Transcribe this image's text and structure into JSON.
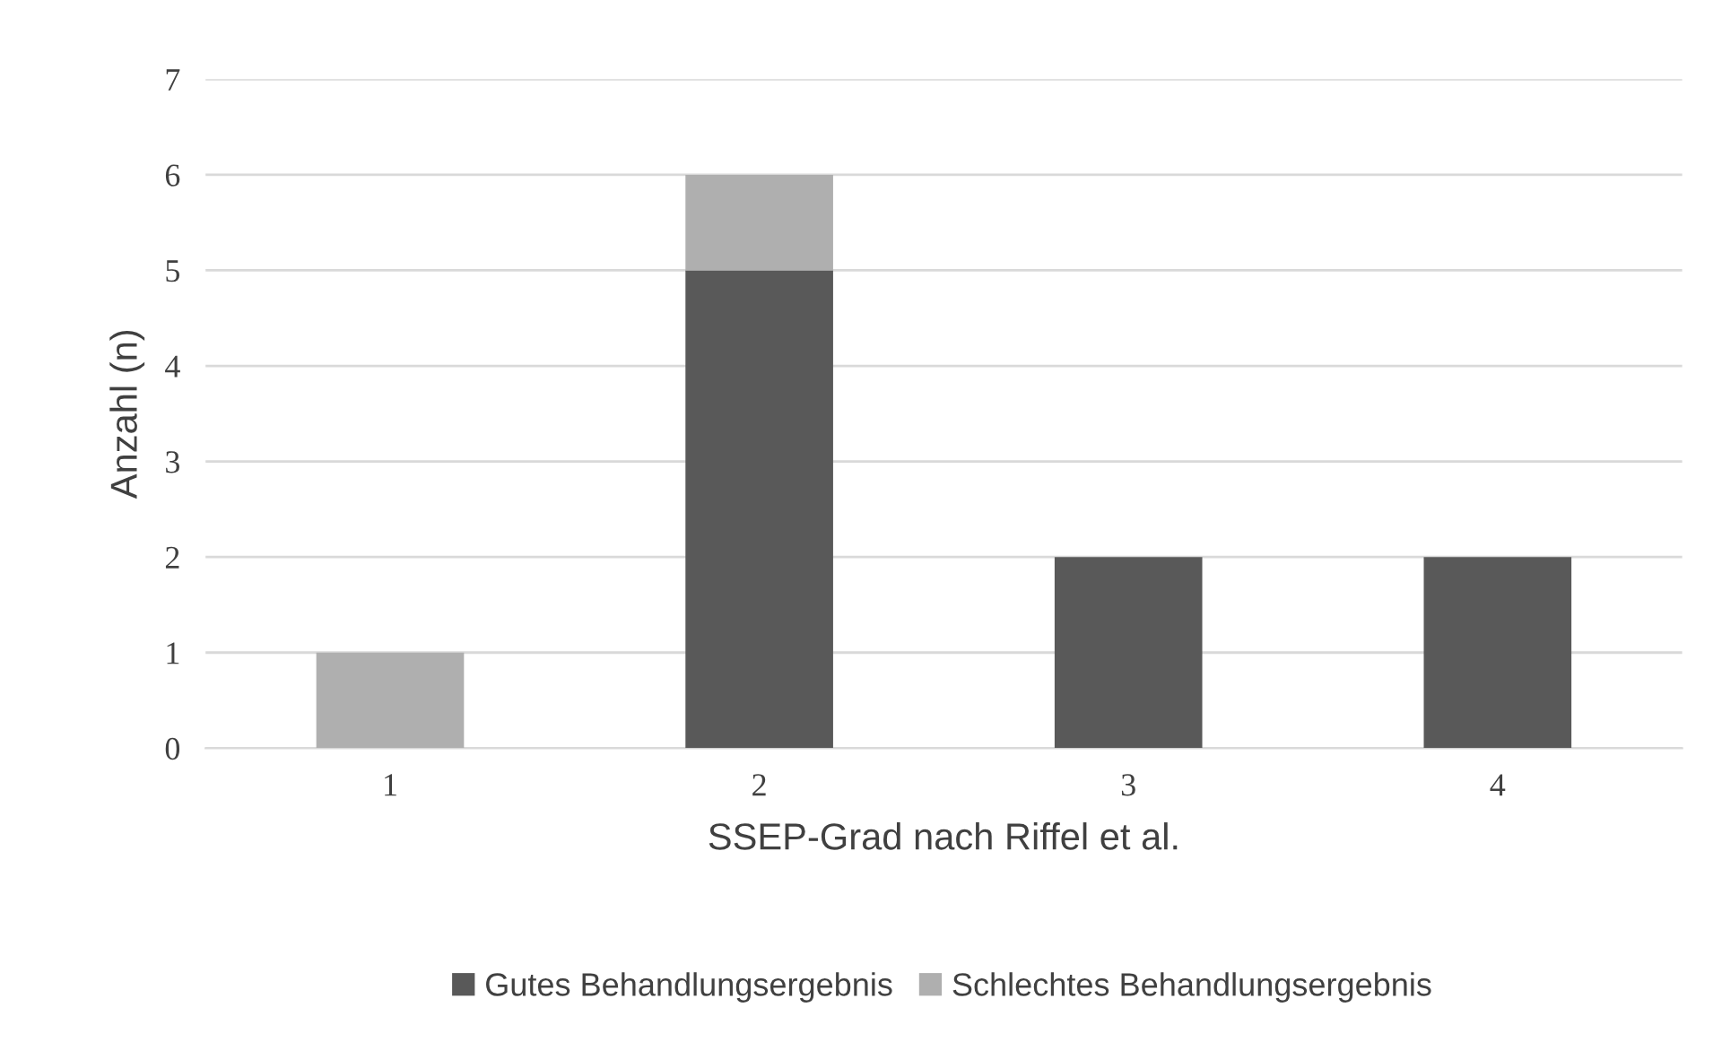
{
  "chart_data": {
    "type": "bar",
    "stacked": true,
    "xlabel": "SSEP-Grad nach Riffel et al.",
    "ylabel": "Anzahl (n)",
    "categories": [
      "1",
      "2",
      "3",
      "4"
    ],
    "series": [
      {
        "name": "Gutes Behandlungsergebnis",
        "color": "#595959",
        "values": [
          0,
          5,
          2,
          2
        ]
      },
      {
        "name": "Schlechtes Behandlungsergebnis",
        "color": "#afafaf",
        "values": [
          1,
          1,
          0,
          0
        ]
      }
    ],
    "ylim": [
      0,
      7
    ],
    "yticks": [
      0,
      1,
      2,
      3,
      4,
      5,
      6,
      7
    ],
    "grid": "y",
    "legend": "bottom"
  }
}
